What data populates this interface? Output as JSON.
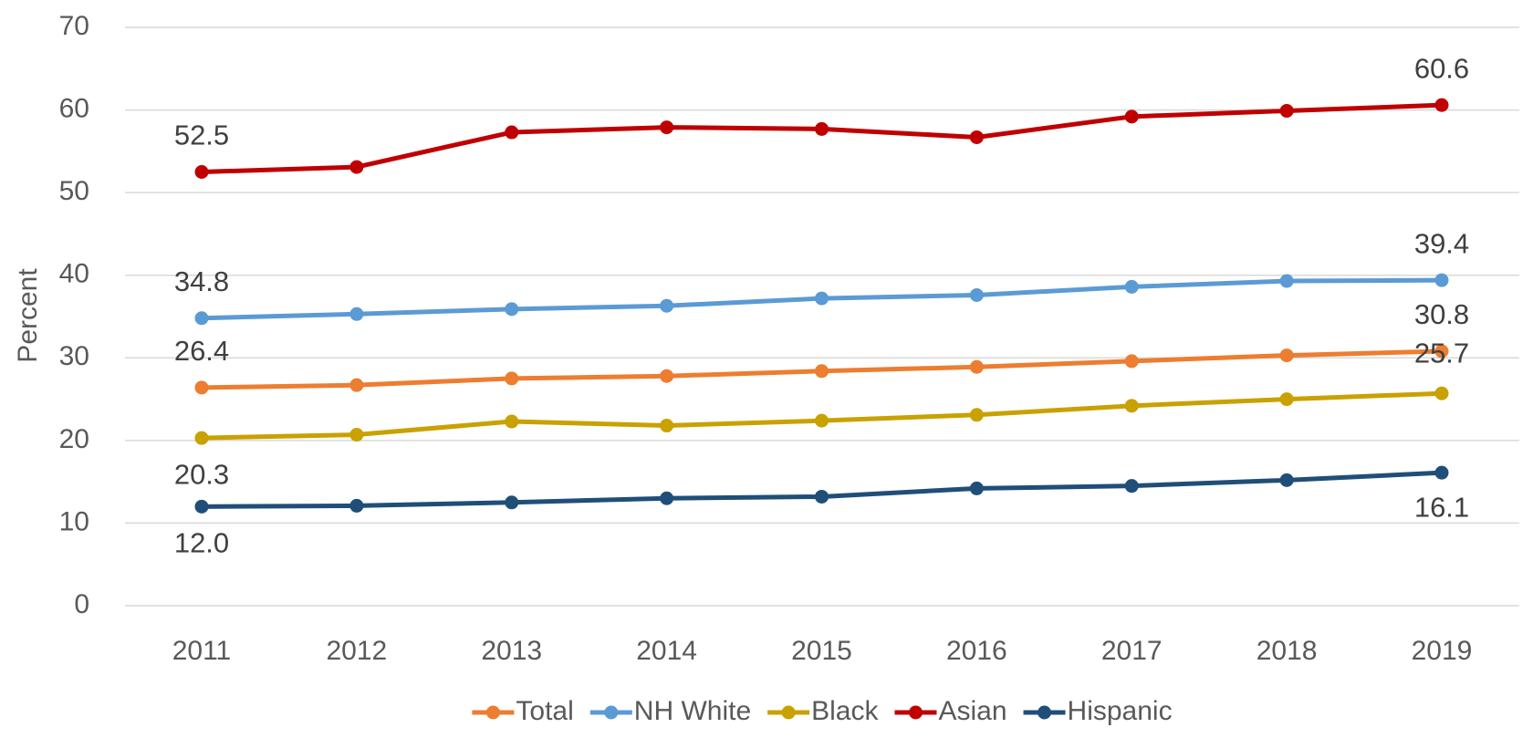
{
  "chart_data": {
    "type": "line",
    "y_label": "Percent",
    "categories": [
      "2011",
      "2012",
      "2013",
      "2014",
      "2015",
      "2016",
      "2017",
      "2018",
      "2019"
    ],
    "ylim": [
      0,
      70
    ],
    "yticks": [
      0,
      10,
      20,
      30,
      40,
      50,
      60,
      70
    ],
    "grid": true,
    "legend": "bottom",
    "series": [
      {
        "name": "Total",
        "color": "#ed7d31",
        "values": [
          26.4,
          26.7,
          27.5,
          27.8,
          28.4,
          28.9,
          29.6,
          30.3,
          30.8
        ],
        "value_labels": [
          "26.4",
          null,
          null,
          null,
          null,
          null,
          null,
          null,
          "30.8"
        ]
      },
      {
        "name": "NH White",
        "color": "#5b9bd5",
        "values": [
          34.8,
          35.3,
          35.9,
          36.3,
          37.2,
          37.6,
          38.6,
          39.3,
          39.4
        ],
        "value_labels": [
          "34.8",
          null,
          null,
          null,
          null,
          null,
          null,
          null,
          "39.4"
        ]
      },
      {
        "name": "Black",
        "color": "#c9a100",
        "values": [
          20.3,
          20.7,
          22.3,
          21.8,
          22.4,
          23.1,
          24.2,
          25.0,
          25.7
        ],
        "value_labels": [
          "20.3",
          null,
          null,
          null,
          null,
          null,
          null,
          null,
          "25.7"
        ]
      },
      {
        "name": "Asian",
        "color": "#c00000",
        "values": [
          52.5,
          53.1,
          57.3,
          57.9,
          57.7,
          56.7,
          59.2,
          59.9,
          60.6
        ],
        "value_labels": [
          "52.5",
          null,
          null,
          null,
          null,
          null,
          null,
          null,
          "60.6"
        ]
      },
      {
        "name": "Hispanic",
        "color": "#1f4e79",
        "values": [
          12.0,
          12.1,
          12.5,
          13.0,
          13.2,
          14.2,
          14.5,
          15.2,
          16.1
        ],
        "value_labels": [
          "12.0",
          null,
          null,
          null,
          null,
          null,
          null,
          null,
          "16.1"
        ]
      }
    ]
  }
}
